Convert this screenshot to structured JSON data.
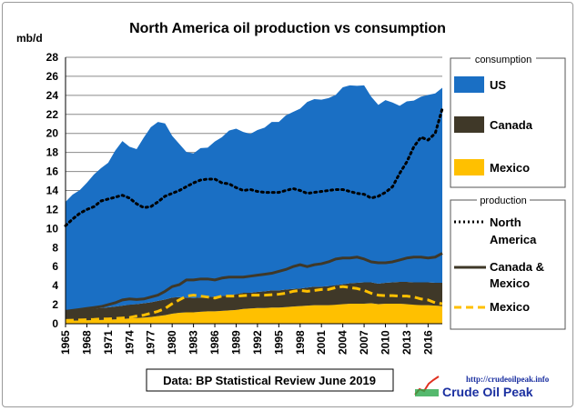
{
  "chart_data": {
    "type": "area",
    "title": "North America oil production vs consumption",
    "ylabel": "mb/d",
    "xlabel": "",
    "ylim": [
      0,
      28
    ],
    "yticks": [
      0,
      2,
      4,
      6,
      8,
      10,
      12,
      14,
      16,
      18,
      20,
      22,
      24,
      26,
      28
    ],
    "xlim": [
      1965,
      2018
    ],
    "xtick_labels": [
      "1965",
      "1968",
      "1971",
      "1974",
      "1977",
      "1980",
      "1983",
      "1986",
      "1989",
      "1992",
      "1995",
      "1998",
      "2001",
      "2004",
      "2007",
      "2010",
      "2013",
      "2016"
    ],
    "grid": true,
    "source": "Data: BP Statistical Review June 2019",
    "years": [
      1965,
      1966,
      1967,
      1968,
      1969,
      1970,
      1971,
      1972,
      1973,
      1974,
      1975,
      1976,
      1977,
      1978,
      1979,
      1980,
      1981,
      1982,
      1983,
      1984,
      1985,
      1986,
      1987,
      1988,
      1989,
      1990,
      1991,
      1992,
      1993,
      1994,
      1995,
      1996,
      1997,
      1998,
      1999,
      2000,
      2001,
      2002,
      2003,
      2004,
      2005,
      2006,
      2007,
      2008,
      2009,
      2010,
      2011,
      2012,
      2013,
      2014,
      2015,
      2016,
      2017,
      2018
    ],
    "stacked_series": [
      {
        "name": "Mexico",
        "group": "consumption",
        "color": "#ffc000",
        "values": [
          0.3,
          0.32,
          0.34,
          0.36,
          0.38,
          0.4,
          0.42,
          0.45,
          0.5,
          0.55,
          0.6,
          0.65,
          0.7,
          0.8,
          0.9,
          1.05,
          1.15,
          1.2,
          1.2,
          1.25,
          1.3,
          1.3,
          1.35,
          1.4,
          1.45,
          1.55,
          1.6,
          1.65,
          1.65,
          1.7,
          1.7,
          1.75,
          1.8,
          1.85,
          1.9,
          1.95,
          1.95,
          1.95,
          2.0,
          2.05,
          2.1,
          2.1,
          2.1,
          2.15,
          2.05,
          2.1,
          2.1,
          2.1,
          2.05,
          2.0,
          1.95,
          1.95,
          1.9,
          1.85
        ]
      },
      {
        "name": "Canada",
        "group": "consumption",
        "color": "#3f3828",
        "values": [
          1.0,
          1.05,
          1.1,
          1.15,
          1.2,
          1.25,
          1.3,
          1.35,
          1.4,
          1.45,
          1.45,
          1.5,
          1.55,
          1.6,
          1.65,
          1.7,
          1.65,
          1.55,
          1.5,
          1.5,
          1.5,
          1.55,
          1.55,
          1.6,
          1.65,
          1.7,
          1.65,
          1.7,
          1.75,
          1.8,
          1.8,
          1.85,
          1.85,
          1.85,
          1.9,
          1.95,
          1.95,
          2.0,
          2.05,
          2.1,
          2.15,
          2.2,
          2.25,
          2.2,
          2.15,
          2.2,
          2.25,
          2.3,
          2.35,
          2.35,
          2.4,
          2.4,
          2.4,
          2.45
        ]
      },
      {
        "name": "US",
        "group": "consumption",
        "color": "#1a6fc4",
        "values": [
          11.5,
          12.2,
          12.6,
          13.3,
          14.1,
          14.7,
          15.2,
          16.4,
          17.3,
          16.6,
          16.3,
          17.4,
          18.4,
          18.8,
          18.5,
          17.0,
          16.1,
          15.3,
          15.2,
          15.7,
          15.7,
          16.3,
          16.7,
          17.3,
          17.4,
          16.9,
          16.7,
          17.0,
          17.2,
          17.7,
          17.7,
          18.3,
          18.6,
          18.9,
          19.5,
          19.7,
          19.65,
          19.76,
          20.0,
          20.7,
          20.8,
          20.7,
          20.7,
          19.5,
          18.8,
          19.2,
          18.9,
          18.5,
          18.96,
          19.1,
          19.5,
          19.7,
          19.9,
          20.5
        ]
      }
    ],
    "line_series": [
      {
        "name": "North America",
        "group": "production",
        "style": "dotted",
        "color": "#000000",
        "values": [
          10.3,
          11.0,
          11.6,
          12.0,
          12.3,
          12.9,
          13.1,
          13.3,
          13.5,
          13.2,
          12.6,
          12.2,
          12.3,
          12.8,
          13.4,
          13.7,
          14.0,
          14.4,
          14.8,
          15.1,
          15.2,
          15.2,
          14.8,
          14.7,
          14.3,
          14.0,
          14.1,
          13.9,
          13.8,
          13.8,
          13.8,
          14.0,
          14.2,
          14.0,
          13.7,
          13.8,
          13.9,
          14.0,
          14.1,
          14.1,
          13.9,
          13.7,
          13.6,
          13.2,
          13.4,
          13.8,
          14.4,
          15.8,
          17.0,
          18.6,
          19.6,
          19.3,
          20.0,
          22.6
        ]
      },
      {
        "name": "Canada & Mexico",
        "group": "production",
        "style": "solid",
        "color": "#3f3828",
        "values": [
          1.3,
          1.4,
          1.5,
          1.6,
          1.7,
          1.8,
          2.0,
          2.2,
          2.5,
          2.6,
          2.55,
          2.6,
          2.8,
          3.0,
          3.4,
          3.9,
          4.1,
          4.6,
          4.6,
          4.7,
          4.7,
          4.6,
          4.8,
          4.9,
          4.9,
          4.9,
          5.0,
          5.1,
          5.2,
          5.3,
          5.5,
          5.7,
          6.0,
          6.2,
          6.0,
          6.2,
          6.3,
          6.5,
          6.8,
          6.9,
          6.9,
          7.0,
          6.8,
          6.5,
          6.4,
          6.4,
          6.5,
          6.7,
          6.9,
          7.0,
          7.0,
          6.9,
          7.0,
          7.4
        ]
      },
      {
        "name": "Mexico",
        "group": "production",
        "style": "dashed",
        "color": "#ffc000",
        "values": [
          0.35,
          0.37,
          0.4,
          0.42,
          0.45,
          0.5,
          0.5,
          0.55,
          0.6,
          0.65,
          0.8,
          0.9,
          1.1,
          1.3,
          1.6,
          2.1,
          2.5,
          2.9,
          3.0,
          2.9,
          2.8,
          2.7,
          2.9,
          2.9,
          2.9,
          2.95,
          3.0,
          3.0,
          3.0,
          3.05,
          3.1,
          3.2,
          3.4,
          3.5,
          3.4,
          3.5,
          3.6,
          3.6,
          3.8,
          3.9,
          3.8,
          3.7,
          3.5,
          3.2,
          3.0,
          2.95,
          2.95,
          2.9,
          2.9,
          2.8,
          2.6,
          2.5,
          2.2,
          2.1
        ]
      }
    ]
  },
  "legend": {
    "consumption_title": "consumption",
    "consumption_items": [
      "US",
      "Canada",
      "Mexico"
    ],
    "production_title": "production",
    "north_america_line1": "North",
    "north_america_line2": "America",
    "canada_mexico_line1": "Canada &",
    "canada_mexico_line2": "Mexico",
    "mexico": "Mexico"
  },
  "logo": {
    "url": "http://crudeoilpeak.info",
    "name": "Crude Oil Peak"
  },
  "colors": {
    "us": "#1a6fc4",
    "canada": "#3f3828",
    "mexico": "#ffc000",
    "grid": "#808080"
  }
}
